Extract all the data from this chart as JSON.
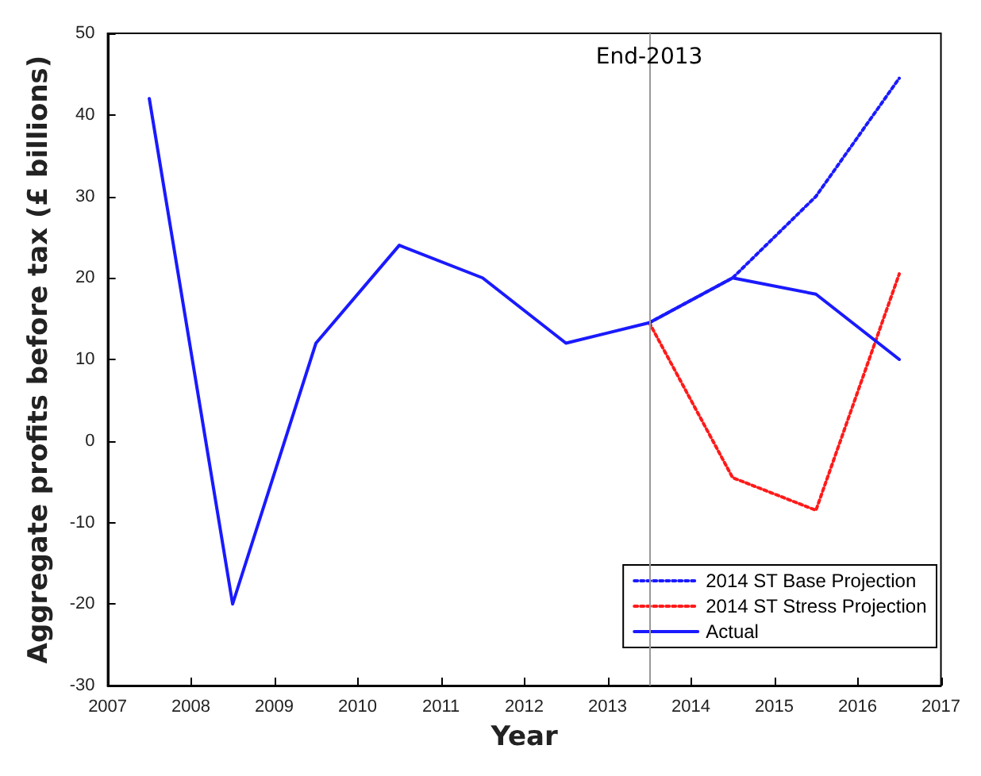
{
  "chart_data": {
    "type": "line",
    "xlabel": "Year",
    "ylabel": "Aggregate profits before tax (£ billions)",
    "xlim": [
      2007,
      2017
    ],
    "xticks": [
      2007,
      2008,
      2009,
      2010,
      2011,
      2012,
      2013,
      2014,
      2015,
      2016,
      2017
    ],
    "ylim": [
      -30,
      50
    ],
    "yticks": [
      -30,
      -20,
      -10,
      0,
      10,
      20,
      30,
      40,
      50
    ],
    "grid": false,
    "legend": "bottom right",
    "marker": "none",
    "ref_lines": [
      {
        "axis": "x",
        "value": 2013.5,
        "label": "End-2013",
        "color": "#999999"
      }
    ],
    "series": [
      {
        "name": "2014 ST Base Projection",
        "color": "#1a1aff",
        "line_style": "dotted",
        "x": [
          2013.5,
          2014.5,
          2015.5,
          2016.5
        ],
        "values": [
          14.5,
          20,
          30,
          44.5
        ]
      },
      {
        "name": "2014 ST Stress Projection",
        "color": "#ff1a1a",
        "line_style": "dotted",
        "x": [
          2013.5,
          2014.5,
          2015.5,
          2016.5
        ],
        "values": [
          14.5,
          -4.5,
          -8.5,
          20.5
        ]
      },
      {
        "name": "Actual",
        "color": "#1a1aff",
        "line_style": "solid",
        "x": [
          2007.5,
          2008.5,
          2009.5,
          2010.5,
          2011.5,
          2012.5,
          2013.5,
          2014.5,
          2015.5,
          2016.5
        ],
        "values": [
          42,
          -20,
          12,
          24,
          20,
          12,
          14.5,
          20,
          18,
          10
        ]
      }
    ]
  }
}
